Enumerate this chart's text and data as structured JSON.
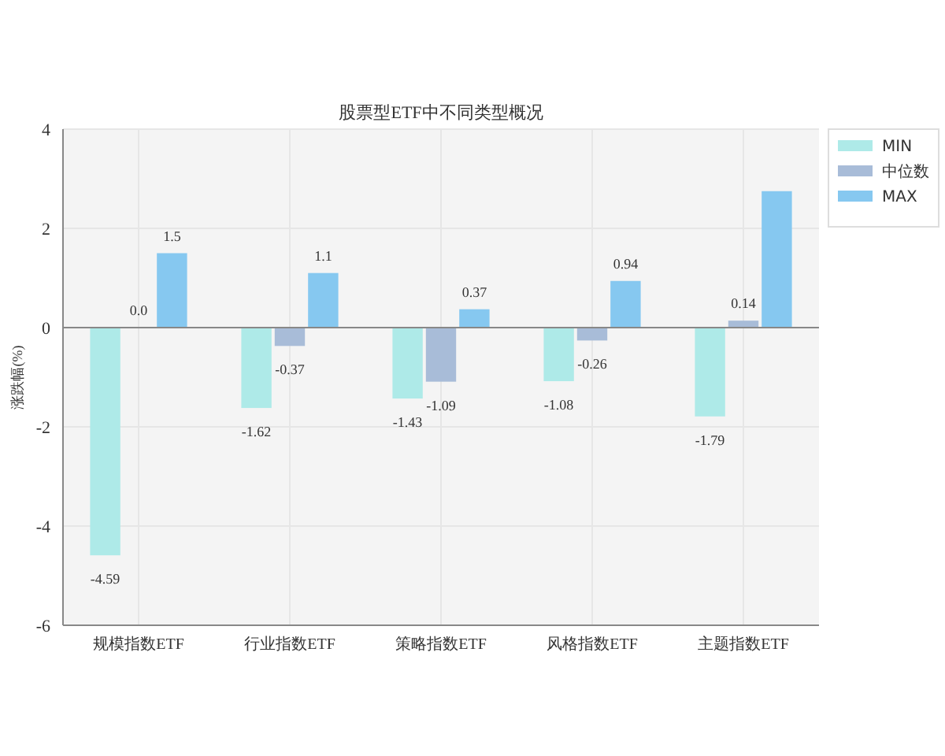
{
  "chart_data": {
    "type": "bar",
    "title": "股票型ETF中不同类型概况",
    "ylabel": "涨跌幅(%)",
    "categories": [
      "规模指数ETF",
      "行业指数ETF",
      "策略指数ETF",
      "风格指数ETF",
      "主题指数ETF"
    ],
    "series": [
      {
        "name": "MIN",
        "color": "#aeeae8",
        "values": [
          -4.59,
          -1.62,
          -1.43,
          -1.08,
          -1.79
        ],
        "value_labels": [
          "-4.59",
          "-1.62",
          "-1.43",
          "-1.08",
          "-1.79"
        ]
      },
      {
        "name": "中位数",
        "color": "#a8bcd8",
        "values": [
          0.0,
          -0.37,
          -1.09,
          -0.26,
          0.14
        ],
        "value_labels": [
          "0.0",
          "-0.37",
          "-1.09",
          "-0.26",
          "0.14"
        ]
      },
      {
        "name": "MAX",
        "color": "#86c8f0",
        "values": [
          1.5,
          1.1,
          0.37,
          0.94,
          2.75
        ],
        "value_labels": [
          "1.5",
          "1.1",
          "0.37",
          "0.94",
          null
        ]
      }
    ],
    "ylim": [
      -6,
      4
    ],
    "yticks": [
      -6,
      -4,
      -2,
      0,
      2,
      4
    ],
    "grid": true,
    "legend": "top right"
  }
}
